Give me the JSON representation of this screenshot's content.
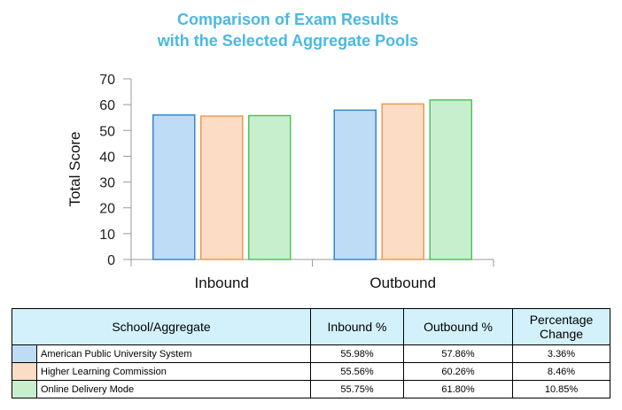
{
  "chart_data": {
    "type": "bar",
    "title": [
      "Comparison of Exam Results",
      "with the Selected Aggregate Pools"
    ],
    "title_color": "#4bb8e4",
    "ylabel": "Total Score",
    "xlabel": "",
    "ylim": [
      0,
      70
    ],
    "yticks": [
      0,
      10,
      20,
      30,
      40,
      50,
      60,
      70
    ],
    "grid": false,
    "categories": [
      "Inbound",
      "Outbound"
    ],
    "series": [
      {
        "name": "American Public University System",
        "values": [
          55.98,
          57.86
        ],
        "fill": "#bfdcf7",
        "stroke": "#3a85cc"
      },
      {
        "name": "Higher Learning Commission",
        "values": [
          55.56,
          60.26
        ],
        "fill": "#fcdcc4",
        "stroke": "#ed9a52"
      },
      {
        "name": "Online Delivery Mode",
        "values": [
          55.75,
          61.8
        ],
        "fill": "#c8efcd",
        "stroke": "#4ec45e"
      }
    ]
  },
  "table": {
    "headers": [
      "School/Aggregate",
      "Inbound %",
      "Outbound %",
      "Percentage Change"
    ],
    "rows": [
      {
        "name": "American Public University System",
        "inbound": "55.98%",
        "outbound": "57.86%",
        "change": "3.36%"
      },
      {
        "name": "Higher Learning Commission",
        "inbound": "55.56%",
        "outbound": "60.26%",
        "change": "8.46%"
      },
      {
        "name": "Online Delivery Mode",
        "inbound": "55.75%",
        "outbound": "61.80%",
        "change": "10.85%"
      }
    ]
  }
}
